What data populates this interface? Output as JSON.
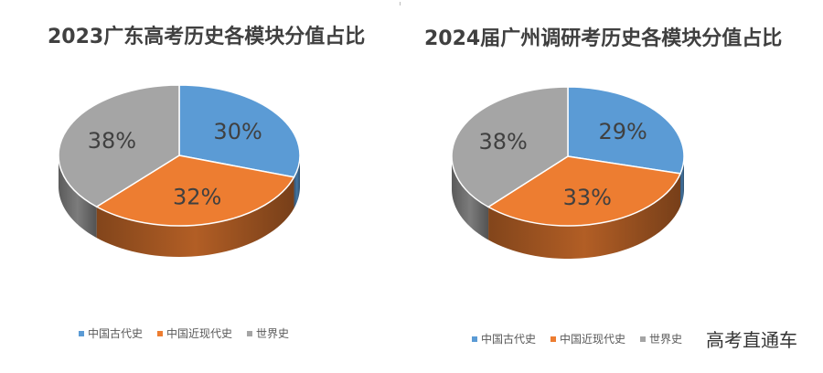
{
  "chart_data": [
    {
      "type": "pie",
      "title": "2023广东高考历史各模块分值占比",
      "categories": [
        "中国古代史",
        "中国近现代史",
        "世界史"
      ],
      "values": [
        30,
        32,
        38
      ],
      "labels": [
        "30%",
        "32%",
        "38%"
      ],
      "colors": [
        "#5B9BD5",
        "#ED7D31",
        "#A5A5A5"
      ],
      "legend_position": "bottom"
    },
    {
      "type": "pie",
      "title": "2024届广州调研考历史各模块分值占比",
      "categories": [
        "中国古代史",
        "中国近现代史",
        "世界史"
      ],
      "values": [
        29,
        33,
        38
      ],
      "labels": [
        "29%",
        "33%",
        "38%"
      ],
      "colors": [
        "#5B9BD5",
        "#ED7D31",
        "#A5A5A5"
      ],
      "legend_position": "bottom"
    }
  ],
  "watermark": "高考直通车",
  "legend_marker": "■"
}
